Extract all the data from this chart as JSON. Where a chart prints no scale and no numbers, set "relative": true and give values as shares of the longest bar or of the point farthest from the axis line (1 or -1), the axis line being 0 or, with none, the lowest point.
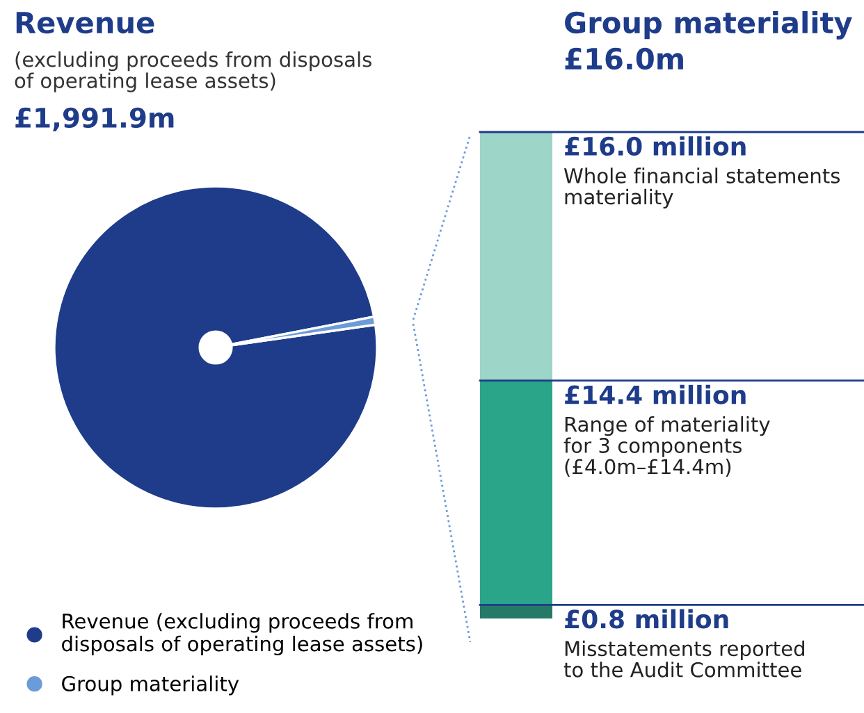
{
  "chart_data": [
    {
      "type": "pie",
      "title": "Revenue",
      "subtitle": "(excluding proceeds from disposals\nof operating lease assets)",
      "annotations": [
        "£1,991.9m"
      ],
      "categories": [
        "Revenue (excluding proceeds from\ndisposals of operating lease assets)",
        "Group materiality"
      ],
      "values": [
        99.2,
        0.8
      ],
      "colors": [
        "#1e3c8a",
        "#6b9bd8"
      ],
      "legend": "bottom left"
    },
    {
      "type": "bar",
      "title": "Group materiality",
      "subtitle": "£16.0m",
      "relative": true,
      "stacked": true,
      "categories": [
        null
      ],
      "series": [
        {
          "color": "#247a66",
          "values": [
            0.028
          ]
        },
        {
          "color": "#2ba58a",
          "values": [
            0.461
          ]
        },
        {
          "color": "#9dd5c8",
          "values": [
            0.511
          ]
        }
      ],
      "ref_lines": [
        {
          "axis": "y",
          "value": 0.028,
          "color": "#1e3c8a"
        },
        {
          "axis": "y",
          "value": 0.489,
          "color": "#1e3c8a"
        },
        {
          "axis": "y",
          "value": 1.0,
          "color": "#1e3c8a"
        }
      ],
      "annotations": [
        "£0.8 million",
        "Misstatements reported\nto the Audit Committee",
        "£14.4 million",
        "Range of materiality\nfor 3 components\n(£4.0m–£14.4m)",
        "£16.0 million",
        "Whole financial statements\nmateriality"
      ]
    }
  ]
}
